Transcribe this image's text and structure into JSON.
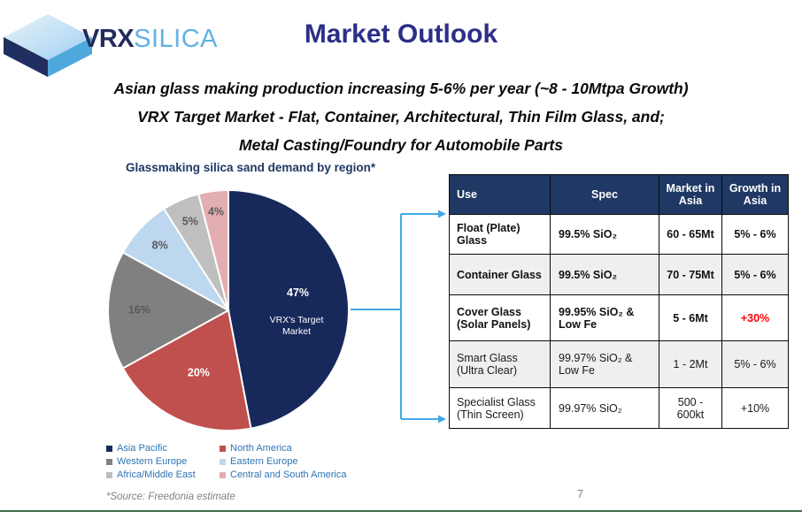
{
  "brand": {
    "name_bold": "VRX",
    "name_light": "SILICA",
    "logo_icon": "cube-diamond"
  },
  "header": {
    "title": "Market Outlook"
  },
  "subtitle": {
    "lines": [
      "Asian glass making production increasing 5-6% per year (~8 - 10Mtpa Growth)",
      "VRX Target Market - Flat, Container, Architectural, Thin Film Glass, and;",
      "Metal Casting/Foundry for Automobile Parts"
    ]
  },
  "chart_data": {
    "type": "pie",
    "title": "Glassmaking silica sand demand by region*",
    "categories": [
      "Asia Pacific",
      "North America",
      "Western Europe",
      "Eastern Europe",
      "Africa/Middle East",
      "Central and South America"
    ],
    "values": [
      47,
      20,
      16,
      8,
      5,
      4
    ],
    "labels": [
      "47%",
      "20%",
      "16%",
      "8%",
      "5%",
      "4%"
    ],
    "colors": [
      "#17295B",
      "#C0504D",
      "#808080",
      "#BDD7EE",
      "#BFBFBF",
      "#E3AEB1"
    ],
    "label_colors": [
      "#FFFFFF",
      "#FFFFFF",
      "#595959",
      "#595959",
      "#595959",
      "#595959"
    ],
    "annotation_lines": [
      "VRX's Target",
      "Market"
    ],
    "start_angle_deg": 0,
    "direction": "clockwise",
    "legend_position": "bottom-left"
  },
  "table": {
    "columns": [
      "Use",
      "Spec",
      "Market in Asia",
      "Growth in Asia"
    ],
    "rows": [
      {
        "use": [
          "Float (Plate) Glass"
        ],
        "spec": "99.5% SiO₂",
        "market": "60 - 65Mt",
        "growth": "5% - 6%",
        "bold": true
      },
      {
        "use": [
          "Container Glass"
        ],
        "spec": "99.5% SiO₂",
        "market": "70 - 75Mt",
        "growth": "5% - 6%",
        "bold": true
      },
      {
        "use": [
          "Cover Glass",
          "(Solar Panels)"
        ],
        "spec": "99.95% SiO₂ & Low Fe",
        "market": "5 - 6Mt",
        "growth": "+30%",
        "growth_color": "#FF0000",
        "bold": true
      },
      {
        "use": [
          "Smart Glass",
          "(Ultra Clear)"
        ],
        "spec": "99.97% SiO₂ & Low Fe",
        "market": "1 - 2Mt",
        "growth": "5% - 6%",
        "bold": false
      },
      {
        "use": [
          "Specialist Glass",
          "(Thin Screen)"
        ],
        "spec": "99.97% SiO₂",
        "market": "500 - 600kt",
        "growth": "+10%",
        "bold": false
      }
    ]
  },
  "footer": {
    "source": "*Source: Freedonia estimate",
    "page_number": "7"
  },
  "colors": {
    "title_indigo": "#2D2E87",
    "header_navy": "#1F3864",
    "pie_navy": "#17295B",
    "accent_blue": "#3FA9E8",
    "legend_text_blue": "#2E74B5",
    "rule_green": "#41704A",
    "row_alt_gray": "#EFEFEF",
    "growth_red": "#FF0000",
    "label_gray": "#595959"
  }
}
